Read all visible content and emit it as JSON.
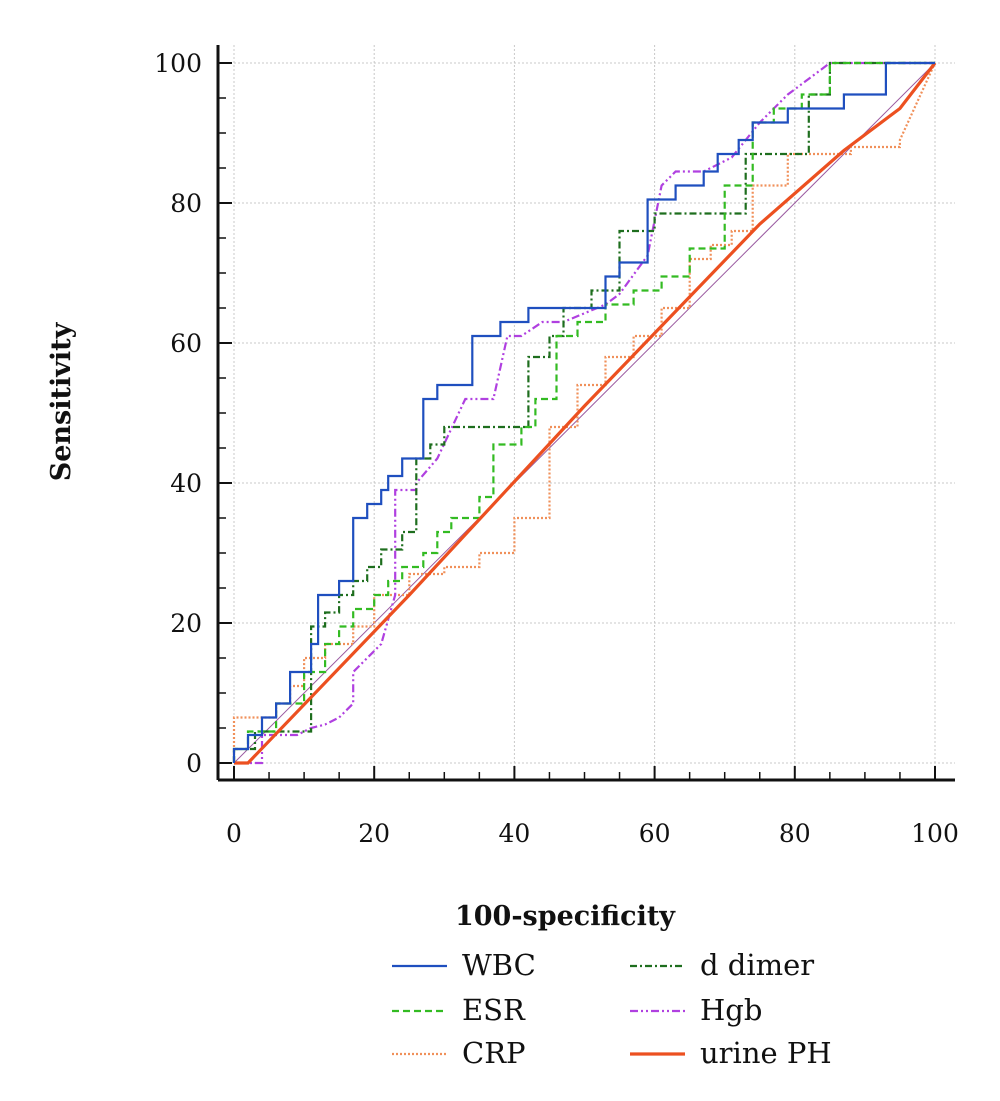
{
  "chart_data": {
    "type": "line",
    "xlabel": "100-specificity",
    "ylabel": "Sensitivity",
    "xlim": [
      0,
      100
    ],
    "ylim": [
      0,
      100
    ],
    "x_ticks": [
      0,
      20,
      40,
      60,
      80,
      100
    ],
    "y_ticks": [
      0,
      20,
      40,
      60,
      80,
      100
    ],
    "grid": true,
    "legend_position": "bottom",
    "reference_line": {
      "x": [
        0,
        100
      ],
      "y": [
        0,
        100
      ]
    },
    "series": [
      {
        "name": "WBC",
        "color": "#1f4fbf",
        "style": "solid",
        "x": [
          0,
          0,
          2,
          2,
          4,
          4,
          6,
          6,
          8,
          8,
          11,
          11,
          12,
          12,
          15,
          15,
          17,
          17,
          19,
          19,
          21,
          21,
          22,
          22,
          24,
          24,
          27,
          27,
          29,
          29,
          34,
          34,
          38,
          38,
          42,
          42,
          53,
          53,
          55,
          55,
          59,
          59,
          63,
          63,
          67,
          67,
          69,
          69,
          72,
          72,
          74,
          74,
          79,
          79,
          87,
          87,
          93,
          93,
          100
        ],
        "y": [
          0,
          2,
          2,
          4,
          4,
          6.5,
          6.5,
          8.5,
          8.5,
          13,
          13,
          17,
          17,
          24,
          24,
          26,
          26,
          35,
          35,
          37,
          37,
          39,
          39,
          41,
          41,
          43.5,
          43.5,
          52,
          52,
          54,
          54,
          61,
          61,
          63,
          63,
          65,
          65,
          69.5,
          69.5,
          71.5,
          71.5,
          80.5,
          80.5,
          82.5,
          82.5,
          84.5,
          84.5,
          87,
          87,
          89,
          89,
          91.5,
          91.5,
          93.5,
          93.5,
          95.5,
          95.5,
          100,
          100
        ]
      },
      {
        "name": "ESR",
        "color": "#33bb22",
        "style": "dashed",
        "x": [
          0,
          0,
          2,
          2,
          6,
          6,
          10,
          10,
          13,
          13,
          15,
          15,
          17,
          17,
          20,
          20,
          22,
          22,
          24,
          24,
          27,
          27,
          29,
          29,
          31,
          31,
          35,
          35,
          37,
          37,
          41,
          41,
          43,
          43,
          46,
          46,
          49,
          49,
          53,
          53,
          57,
          57,
          61,
          61,
          65,
          65,
          70,
          70,
          74,
          74,
          77,
          77,
          81,
          81,
          85,
          85,
          100
        ],
        "y": [
          0,
          2,
          2,
          4.5,
          4.5,
          8.5,
          8.5,
          13,
          13,
          17,
          17,
          19.5,
          19.5,
          22,
          22,
          24,
          24,
          26,
          26,
          28,
          28,
          30,
          30,
          33,
          33,
          35,
          35,
          38,
          38,
          45.5,
          45.5,
          48,
          48,
          52,
          52,
          61,
          61,
          63,
          63,
          65.5,
          65.5,
          67.5,
          67.5,
          69.5,
          69.5,
          73.5,
          73.5,
          82.5,
          82.5,
          91.5,
          91.5,
          93.5,
          93.5,
          95.5,
          95.5,
          100,
          100
        ]
      },
      {
        "name": "CRP",
        "color": "#f0905a",
        "style": "dotted",
        "x": [
          0,
          0,
          6,
          6,
          8,
          8,
          10,
          10,
          13,
          13,
          17,
          17,
          20,
          20,
          25,
          25,
          30,
          30,
          35,
          35,
          40,
          40,
          45,
          45,
          49,
          49,
          53,
          53,
          57,
          57,
          61,
          61,
          65,
          65,
          68,
          68,
          71,
          71,
          74,
          74,
          79,
          79,
          84,
          84,
          88,
          88,
          95,
          95,
          100
        ],
        "y": [
          0,
          6.5,
          6.5,
          8.5,
          8.5,
          11,
          11,
          15,
          15,
          17,
          17,
          19.5,
          19.5,
          24,
          24,
          27,
          27,
          28,
          28,
          30,
          30,
          35,
          35,
          48,
          48,
          54,
          54,
          58,
          58,
          61,
          61,
          65,
          65,
          72,
          72,
          74,
          74,
          76,
          76,
          82.5,
          82.5,
          87,
          87,
          87,
          87,
          88,
          88,
          89,
          100
        ]
      },
      {
        "name": "d dimer",
        "color": "#1e6e1e",
        "style": "dashdot",
        "x": [
          0,
          0,
          3,
          3,
          11,
          11,
          13,
          13,
          15,
          15,
          17,
          17,
          19,
          19,
          21,
          21,
          24,
          24,
          26,
          26,
          28,
          28,
          30,
          30,
          42,
          42,
          45,
          45,
          47,
          47,
          51,
          51,
          55,
          55,
          60,
          60,
          67,
          67,
          73,
          73,
          82,
          82,
          85,
          85,
          89,
          89,
          100
        ],
        "y": [
          0,
          2,
          2,
          4.5,
          4.5,
          19.5,
          19.5,
          21.5,
          21.5,
          24,
          24,
          26,
          26,
          28,
          28,
          30.5,
          30.5,
          33,
          33,
          43.5,
          43.5,
          45.5,
          45.5,
          48,
          48,
          58,
          58,
          61,
          61,
          65,
          65,
          67.5,
          67.5,
          76,
          76,
          78.5,
          78.5,
          78.5,
          78.5,
          87,
          87,
          95.5,
          95.5,
          100,
          100,
          100,
          100
        ]
      },
      {
        "name": "Hgb",
        "color": "#b040e0",
        "style": "dashdotdot",
        "x": [
          0,
          4,
          4,
          9,
          11,
          13,
          15,
          17,
          17,
          19,
          21,
          23,
          23,
          26,
          26,
          29,
          33,
          33,
          37,
          37,
          39,
          41,
          44,
          47,
          53,
          55,
          59,
          61,
          63,
          67,
          71,
          75,
          79,
          85,
          100
        ],
        "y": [
          0,
          0,
          4,
          4,
          5,
          5.5,
          6.5,
          8.5,
          13,
          15,
          17,
          24,
          39,
          39,
          40,
          43.5,
          52,
          52,
          52,
          52,
          61,
          61,
          63,
          63,
          65.5,
          67,
          72.5,
          82.5,
          84.5,
          84.5,
          86.5,
          91.5,
          95.5,
          100,
          100
        ]
      },
      {
        "name": "urine PH",
        "color": "#ec5020",
        "style": "solid-thick",
        "x": [
          0,
          2,
          25,
          50,
          75,
          87,
          95,
          100
        ],
        "y": [
          0,
          0,
          24,
          51,
          77,
          87.5,
          93.5,
          100
        ]
      }
    ],
    "legend": {
      "left": [
        "WBC",
        "ESR",
        "CRP"
      ],
      "right": [
        "d dimer",
        "Hgb",
        "urine PH"
      ]
    }
  }
}
